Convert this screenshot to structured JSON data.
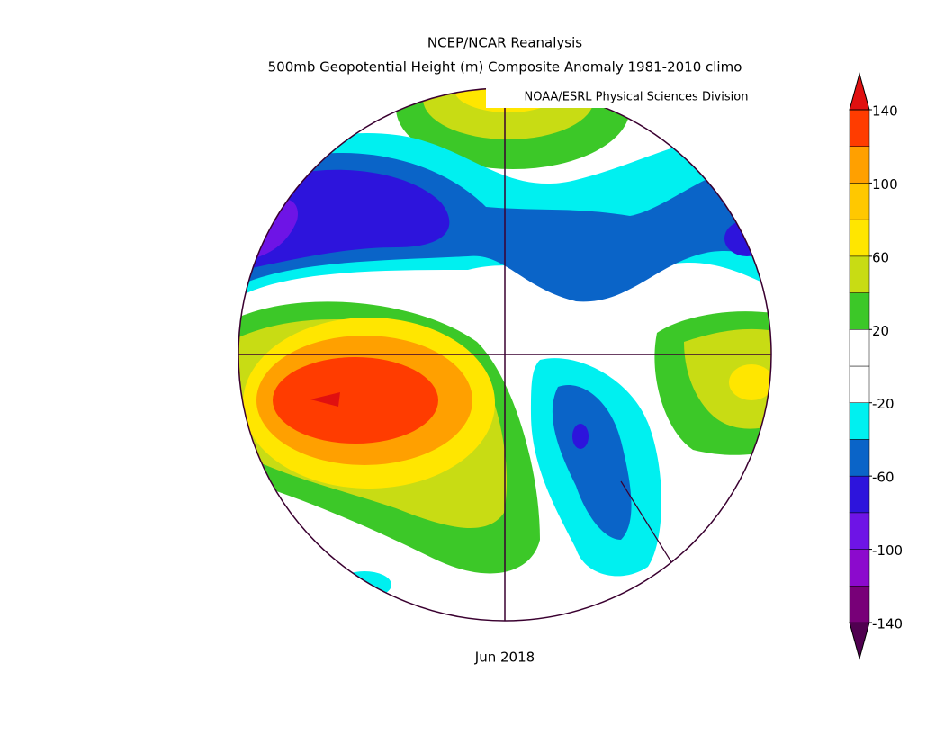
{
  "header": {
    "title": "NCEP/NCAR Reanalysis",
    "subtitle": "500mb Geopotential Height (m) Composite Anomaly 1981-2010 climo",
    "credit": "NOAA/ESRL Physical Sciences Division"
  },
  "map": {
    "caption": "Jun 2018"
  },
  "colorbar": {
    "lim": [
      -140,
      140
    ],
    "ticks": [
      -140,
      -100,
      -60,
      -20,
      20,
      60,
      100,
      140
    ],
    "colors": [
      "#500050",
      "#780078",
      "#8c0acd",
      "#6e14e6",
      "#2d14dc",
      "#0a64c8",
      "#00f0f0",
      "#ffffff",
      "#ffffff",
      "#3cc828",
      "#c8dc14",
      "#ffe600",
      "#ffc800",
      "#ffa000",
      "#ff3c00",
      "#e01010"
    ]
  }
}
